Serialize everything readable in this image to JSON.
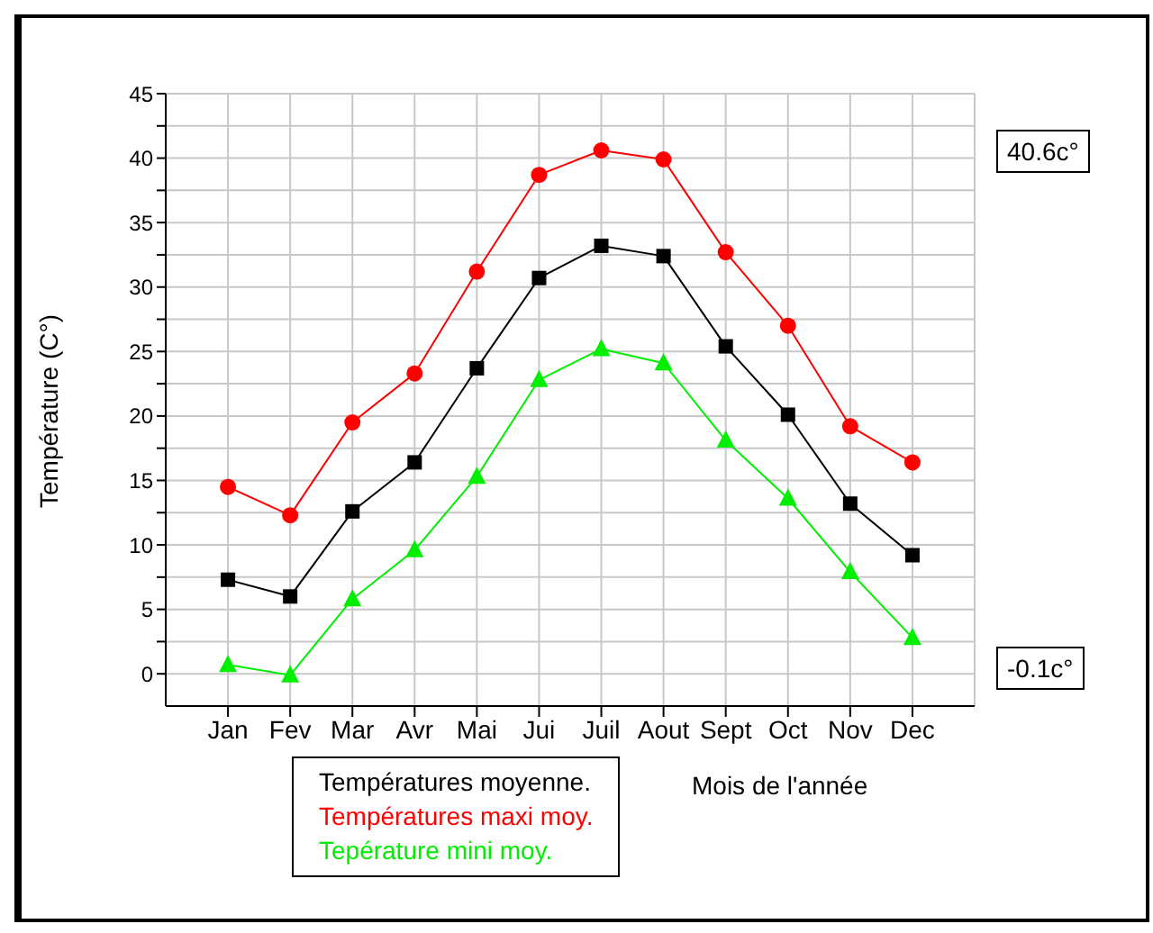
{
  "chart_data": {
    "type": "line",
    "xlabel": "Mois de l'année",
    "ylabel": "Température (C°)",
    "categories": [
      "Jan",
      "Fev",
      "Mar",
      "Avr",
      "Mai",
      "Jui",
      "Juil",
      "Aout",
      "Sept",
      "Oct",
      "Nov",
      "Dec"
    ],
    "series": [
      {
        "name": "Températures moyenne.",
        "color": "#000000",
        "marker": "square",
        "values": [
          7.3,
          6.0,
          12.6,
          16.4,
          23.7,
          30.7,
          33.2,
          32.4,
          25.4,
          20.1,
          13.2,
          9.2
        ]
      },
      {
        "name": "Températures maxi moy.",
        "color": "#ff0000",
        "marker": "circle",
        "values": [
          14.5,
          12.3,
          19.5,
          23.3,
          31.2,
          38.7,
          40.6,
          39.9,
          32.7,
          27.0,
          19.2,
          16.4
        ]
      },
      {
        "name": "Tepérature mini moy.",
        "color": "#00ee00",
        "marker": "triangle",
        "values": [
          0.7,
          -0.1,
          5.8,
          9.6,
          15.3,
          22.8,
          25.2,
          24.1,
          18.1,
          13.6,
          7.9,
          2.8
        ]
      }
    ],
    "ylim": [
      -2.5,
      45
    ],
    "yticks": [
      0,
      {
        "value": 2.5,
        "label": null
      },
      5,
      {
        "value": 7.5,
        "label": null
      },
      10,
      {
        "value": 12.5,
        "label": null
      },
      15,
      {
        "value": 17.5,
        "label": null
      },
      20,
      {
        "value": 22.5,
        "label": null
      },
      25,
      {
        "value": 27.5,
        "label": null
      },
      30,
      {
        "value": 32.5,
        "label": null
      },
      35,
      {
        "value": 37.5,
        "label": null
      },
      40,
      {
        "value": 42.5,
        "label": null
      },
      45
    ],
    "grid": true,
    "legend": "bottom",
    "line_style": "solid",
    "annotations": [
      "40.6c°",
      "-0.1c°"
    ]
  }
}
